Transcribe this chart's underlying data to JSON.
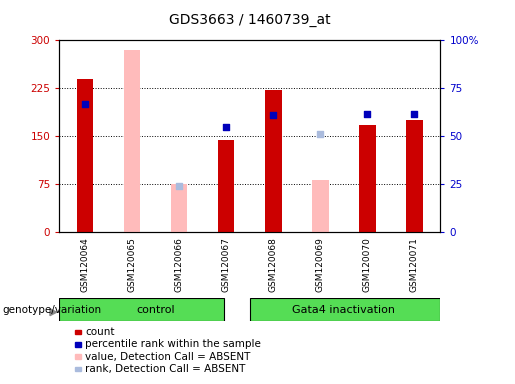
{
  "title": "GDS3663 / 1460739_at",
  "samples": [
    "GSM120064",
    "GSM120065",
    "GSM120066",
    "GSM120067",
    "GSM120068",
    "GSM120069",
    "GSM120070",
    "GSM120071"
  ],
  "red_bars": [
    240,
    null,
    null,
    145,
    222,
    null,
    168,
    175
  ],
  "pink_bars": [
    null,
    285,
    75,
    null,
    null,
    82,
    null,
    null
  ],
  "blue_squares_left": [
    200,
    null,
    null,
    165,
    183,
    null,
    185,
    185
  ],
  "light_blue_squares_left": [
    null,
    null,
    72,
    null,
    null,
    153,
    null,
    null
  ],
  "ylim_left": [
    0,
    300
  ],
  "ylim_right": [
    0,
    100
  ],
  "yticks_left": [
    0,
    75,
    150,
    225,
    300
  ],
  "yticks_right": [
    0,
    25,
    50,
    75,
    100
  ],
  "ytick_labels_left": [
    "0",
    "75",
    "150",
    "225",
    "300"
  ],
  "ytick_labels_right": [
    "0",
    "25",
    "50",
    "75",
    "100%"
  ],
  "group_label_control": "control",
  "group_label_gata4": "Gata4 inactivation",
  "group_label_left": "genotype/variation",
  "legend_labels": [
    "count",
    "percentile rank within the sample",
    "value, Detection Call = ABSENT",
    "rank, Detection Call = ABSENT"
  ],
  "legend_colors": [
    "#cc0000",
    "#0000bb",
    "#ffbbbb",
    "#aabbdd"
  ],
  "bar_width": 0.35,
  "red_color": "#cc0000",
  "pink_color": "#ffbbbb",
  "blue_color": "#0000bb",
  "light_blue_color": "#aabbdd",
  "bg_color": "#c8c8c8",
  "green_color_light": "#aaffaa",
  "green_color_dark": "#55dd55",
  "grid_color": "#444444",
  "right_axis_color": "#0000cc"
}
